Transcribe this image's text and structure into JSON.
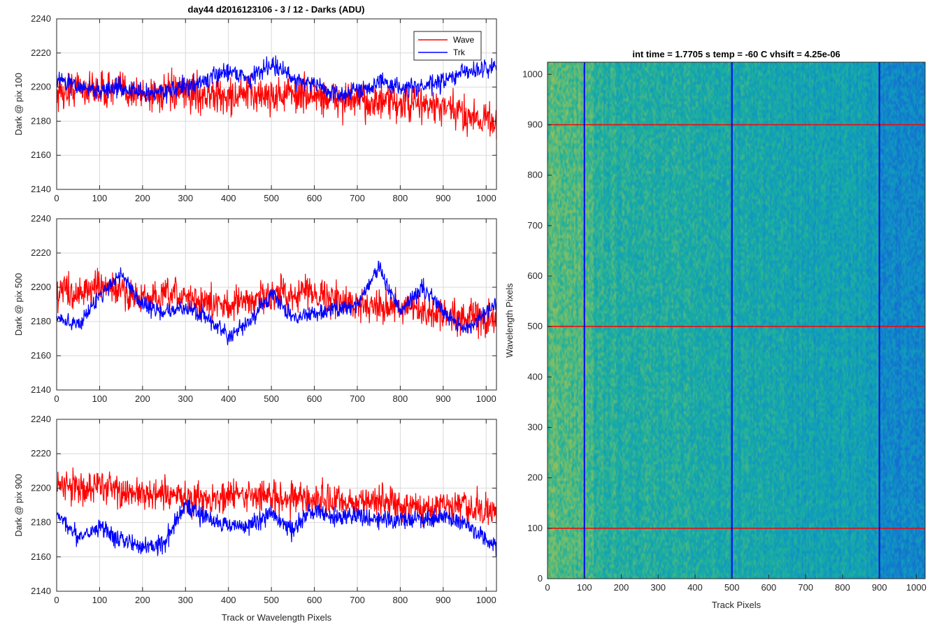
{
  "figure": {
    "title": "day44 d2016123106 - 3 / 12 - Darks (ADU)"
  },
  "colors": {
    "wave": "#ff0000",
    "trk": "#0000ff",
    "axes": "#262626",
    "grid": "#d9d9d9",
    "marker_red": "#ff0000",
    "marker_blue": "#0000ff"
  },
  "chart_data": [
    {
      "type": "line",
      "id": "dark-pix-100",
      "title": "",
      "xlabel": "",
      "ylabel": "Dark @ pix 100",
      "xlim": [
        0,
        1024
      ],
      "ylim": [
        2140,
        2240
      ],
      "xticks": [
        0,
        100,
        200,
        300,
        400,
        500,
        600,
        700,
        800,
        900,
        1000
      ],
      "yticks": [
        2140,
        2160,
        2180,
        2200,
        2220,
        2240
      ],
      "grid": true,
      "legend": {
        "placement": "top-right",
        "entries": [
          "Wave",
          "Trk"
        ]
      },
      "series": [
        {
          "name": "Wave",
          "color": "#ff0000",
          "x": [
            0,
            50,
            100,
            150,
            200,
            250,
            300,
            350,
            400,
            450,
            500,
            550,
            600,
            650,
            700,
            750,
            800,
            850,
            900,
            950,
            1024
          ],
          "values": [
            2196,
            2200,
            2198,
            2199,
            2196,
            2196,
            2197,
            2195,
            2194,
            2196,
            2195,
            2196,
            2195,
            2193,
            2192,
            2191,
            2190,
            2190,
            2187,
            2184,
            2180
          ],
          "noise": 9
        },
        {
          "name": "Trk",
          "color": "#0000ff",
          "x": [
            0,
            50,
            100,
            150,
            200,
            250,
            300,
            350,
            400,
            450,
            500,
            550,
            600,
            650,
            700,
            750,
            800,
            850,
            900,
            950,
            1024
          ],
          "values": [
            2205,
            2200,
            2198,
            2200,
            2196,
            2198,
            2200,
            2204,
            2210,
            2205,
            2214,
            2205,
            2202,
            2195,
            2198,
            2203,
            2200,
            2200,
            2203,
            2209,
            2212
          ],
          "noise": 4.5
        }
      ]
    },
    {
      "type": "line",
      "id": "dark-pix-500",
      "title": "",
      "xlabel": "",
      "ylabel": "Dark @ pix 500",
      "xlim": [
        0,
        1024
      ],
      "ylim": [
        2140,
        2240
      ],
      "xticks": [
        0,
        100,
        200,
        300,
        400,
        500,
        600,
        700,
        800,
        900,
        1000
      ],
      "yticks": [
        2140,
        2160,
        2180,
        2200,
        2220,
        2240
      ],
      "grid": true,
      "series": [
        {
          "name": "Wave",
          "color": "#ff0000",
          "x": [
            0,
            50,
            100,
            150,
            200,
            250,
            300,
            350,
            400,
            450,
            500,
            550,
            600,
            650,
            700,
            750,
            800,
            850,
            900,
            950,
            1024
          ],
          "values": [
            2199,
            2197,
            2200,
            2198,
            2193,
            2194,
            2195,
            2190,
            2190,
            2192,
            2196,
            2196,
            2198,
            2192,
            2190,
            2190,
            2188,
            2185,
            2184,
            2183,
            2180
          ],
          "noise": 8
        },
        {
          "name": "Trk",
          "color": "#0000ff",
          "x": [
            0,
            50,
            100,
            150,
            200,
            250,
            300,
            350,
            400,
            450,
            500,
            550,
            600,
            650,
            700,
            750,
            800,
            850,
            900,
            950,
            1024
          ],
          "values": [
            2182,
            2178,
            2195,
            2208,
            2190,
            2185,
            2188,
            2183,
            2170,
            2180,
            2196,
            2182,
            2185,
            2187,
            2190,
            2212,
            2185,
            2200,
            2187,
            2175,
            2190
          ],
          "noise": 4
        }
      ]
    },
    {
      "type": "line",
      "id": "dark-pix-900",
      "title": "",
      "xlabel": "Track or Wavelength Pixels",
      "ylabel": "Dark @ pix 900",
      "xlim": [
        0,
        1024
      ],
      "ylim": [
        2140,
        2240
      ],
      "xticks": [
        0,
        100,
        200,
        300,
        400,
        500,
        600,
        700,
        800,
        900,
        1000
      ],
      "yticks": [
        2140,
        2160,
        2180,
        2200,
        2220,
        2240
      ],
      "grid": true,
      "series": [
        {
          "name": "Wave",
          "color": "#ff0000",
          "x": [
            0,
            50,
            100,
            150,
            200,
            250,
            300,
            350,
            400,
            450,
            500,
            550,
            600,
            650,
            700,
            750,
            800,
            850,
            900,
            950,
            1024
          ],
          "values": [
            2202,
            2200,
            2202,
            2198,
            2196,
            2195,
            2195,
            2194,
            2195,
            2196,
            2195,
            2195,
            2193,
            2192,
            2192,
            2193,
            2190,
            2188,
            2190,
            2188,
            2185
          ],
          "noise": 8
        },
        {
          "name": "Trk",
          "color": "#0000ff",
          "x": [
            0,
            50,
            100,
            150,
            200,
            250,
            300,
            350,
            400,
            450,
            500,
            550,
            600,
            650,
            700,
            750,
            800,
            850,
            900,
            950,
            1024
          ],
          "values": [
            2185,
            2172,
            2178,
            2170,
            2166,
            2168,
            2190,
            2183,
            2178,
            2178,
            2185,
            2175,
            2188,
            2183,
            2184,
            2182,
            2182,
            2182,
            2183,
            2180,
            2165
          ],
          "noise": 4.5
        }
      ]
    },
    {
      "type": "heatmap",
      "id": "dark-frame-image",
      "title": "int time = 1.7705 s    temp = -60 C    vhsift = 4.25e-06",
      "xlabel": "Track Pixels",
      "ylabel": "Wavelength Pixels",
      "xlim": [
        0,
        1024
      ],
      "ylim": [
        0,
        1024
      ],
      "xticks": [
        0,
        100,
        200,
        300,
        400,
        500,
        600,
        700,
        800,
        900,
        1000
      ],
      "yticks": [
        0,
        100,
        200,
        300,
        400,
        500,
        600,
        700,
        800,
        900,
        1000
      ],
      "colormap": "parula",
      "horizontal_markers": {
        "color": "#ff0000",
        "y": [
          100,
          500,
          900
        ]
      },
      "vertical_markers": {
        "color": "#0000ff",
        "x": [
          100,
          500,
          900
        ]
      }
    }
  ]
}
